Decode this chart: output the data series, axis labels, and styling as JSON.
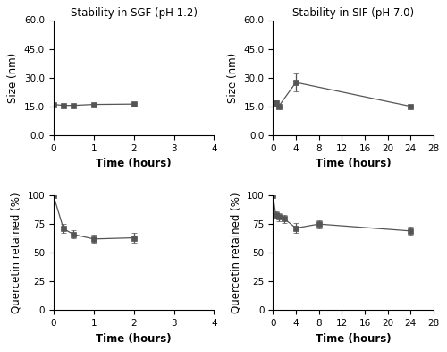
{
  "sgf_size_x": [
    0,
    0.25,
    0.5,
    1.0,
    2.0
  ],
  "sgf_size_y": [
    16.0,
    15.5,
    15.5,
    16.0,
    16.2
  ],
  "sgf_size_yerr": [
    0.4,
    0.4,
    0.4,
    0.5,
    0.7
  ],
  "sif_size_x": [
    0,
    0.5,
    1.0,
    4.0,
    24.0
  ],
  "sif_size_y": [
    16.5,
    16.8,
    15.0,
    27.5,
    15.0
  ],
  "sif_size_yerr": [
    1.0,
    1.2,
    0.5,
    4.5,
    0.5
  ],
  "sgf_quer_x": [
    0,
    0.25,
    0.5,
    1.0,
    2.0
  ],
  "sgf_quer_y": [
    100,
    71.0,
    66.0,
    62.0,
    63.0
  ],
  "sgf_quer_yerr": [
    0.5,
    4.0,
    3.5,
    3.5,
    4.5
  ],
  "sif_quer_x": [
    0,
    0.5,
    1.0,
    2.0,
    4.0,
    8.0,
    24.0
  ],
  "sif_quer_y": [
    100,
    83.0,
    81.0,
    79.5,
    71.5,
    75.0,
    69.0
  ],
  "sif_quer_yerr": [
    0.5,
    3.0,
    3.5,
    3.5,
    4.5,
    3.5,
    3.5
  ],
  "title_sgf_size": "Stability in SGF (pH 1.2)",
  "title_sif_size": "Stability in SIF (pH 7.0)",
  "xlabel": "Time (hours)",
  "ylabel_size": "Size (nm)",
  "ylabel_quer": "Quercetin retained (%)",
  "sgf_xlim": [
    0,
    4
  ],
  "sif_xlim": [
    0,
    28
  ],
  "size_ylim": [
    0,
    60
  ],
  "quer_ylim": [
    0,
    100
  ],
  "sgf_xticks": [
    0,
    1,
    2,
    3,
    4
  ],
  "sif_xticks": [
    0,
    4,
    8,
    12,
    16,
    20,
    24,
    28
  ],
  "size_ytick_vals": [
    0.0,
    15.0,
    30.0,
    45.0,
    60.0
  ],
  "size_ytick_labels": [
    "0.0",
    "15.0",
    "30.0",
    "45.0",
    "60.0"
  ],
  "quer_yticks": [
    0,
    25,
    50,
    75,
    100
  ],
  "line_color": "#555555",
  "marker": "s",
  "markersize": 4,
  "linewidth": 0.9,
  "capsize": 2.5,
  "elinewidth": 0.9,
  "bg_color": "#ffffff",
  "title_fontsize": 8.5,
  "label_fontsize": 8.5,
  "tick_fontsize": 7.5
}
